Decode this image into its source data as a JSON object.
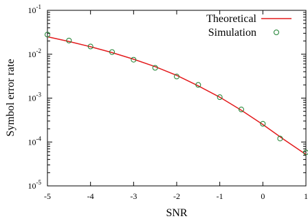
{
  "chart_data": {
    "type": "line",
    "xlabel": "SNR",
    "ylabel": "Symbol error rate",
    "xlim": [
      -5,
      1
    ],
    "ylim": [
      1e-05,
      0.1
    ],
    "yscale": "log",
    "grid": false,
    "legend_placement": "top-right",
    "x_ticks": [
      -5,
      -4,
      -3,
      -2,
      -1,
      0,
      1
    ],
    "y_ticks": [
      {
        "value": 1e-05,
        "base": "10",
        "exp": "-5"
      },
      {
        "value": 0.0001,
        "base": "10",
        "exp": "-4"
      },
      {
        "value": 0.001,
        "base": "10",
        "exp": "-3"
      },
      {
        "value": 0.01,
        "base": "10",
        "exp": "-2"
      },
      {
        "value": 0.1,
        "base": "10",
        "exp": "-1"
      }
    ],
    "series": [
      {
        "name": "Theoretical",
        "kind": "line",
        "color": "#e31a1c",
        "x": [
          -5,
          -4.5,
          -4,
          -3.5,
          -3,
          -2.5,
          -2,
          -1.5,
          -1,
          -0.5,
          0,
          0.5,
          1
        ],
        "y": [
          0.025,
          0.0195,
          0.0148,
          0.0109,
          0.0077,
          0.0052,
          0.0033,
          0.0019,
          0.00105,
          0.00053,
          0.00025,
          0.000112,
          5.2e-05
        ]
      },
      {
        "name": "Simulation",
        "kind": "scatter",
        "color": "#1a7f2e",
        "marker": "open-circle",
        "x": [
          -5,
          -4.5,
          -4,
          -3.5,
          -3,
          -2.5,
          -2,
          -1.5,
          -1,
          -0.5,
          0,
          0.4,
          1
        ],
        "y": [
          0.028,
          0.0205,
          0.015,
          0.0112,
          0.0075,
          0.0049,
          0.0031,
          0.002,
          0.00105,
          0.00055,
          0.00026,
          0.00012,
          5.8e-05
        ]
      }
    ]
  }
}
